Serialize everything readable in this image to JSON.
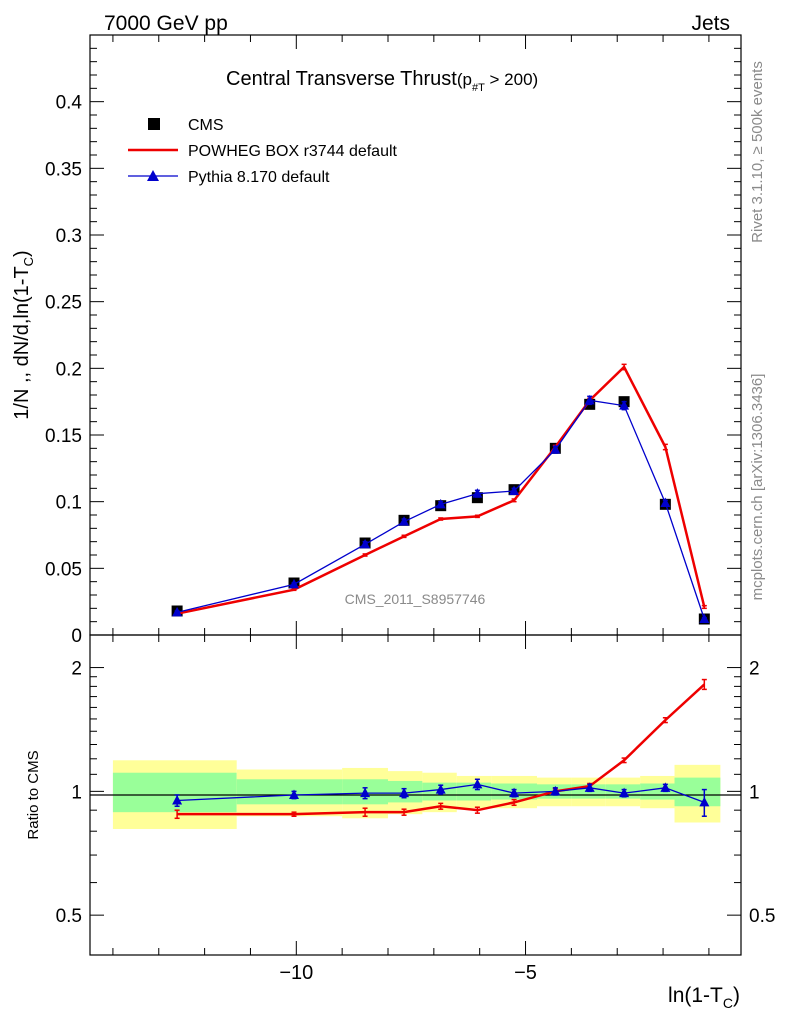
{
  "header": {
    "left": "7000 GeV pp",
    "right": "Jets"
  },
  "side_text": {
    "rivet": "Rivet 3.1.10, ≥ 500k events",
    "mcplots": "mcplots.cern.ch [arXiv:1306.3436]"
  },
  "chart_data": {
    "type": "line",
    "title": "Central Transverse Thrust",
    "title_suffix": "(p",
    "title_sub": "#T",
    "title_end": "  > 200)",
    "watermark": "CMS_2011_S8957746",
    "xlabel": "ln(1-T",
    "xlabel_sub": "C",
    "xlabel_end": ")",
    "ylabel": "1/N ,, dN/d,ln(1-T",
    "ylabel_sub": "C",
    "ylabel_end": ")",
    "ratio_ylabel": "Ratio to CMS",
    "xlim": [
      -14.5,
      -0.3
    ],
    "ylim": [
      0,
      0.45
    ],
    "ratio_ylim": [
      0.4,
      2.4
    ],
    "ratio_log": true,
    "x_ticks": [
      -10,
      -5
    ],
    "x_tick_labels": [
      "−10",
      "−5"
    ],
    "y_ticks": [
      0,
      0.05,
      0.1,
      0.15,
      0.2,
      0.25,
      0.3,
      0.35,
      0.4
    ],
    "y_tick_labels": [
      "0",
      "0.05",
      "0.1",
      "0.15",
      "0.2",
      "0.25",
      "0.3",
      "0.35",
      "0.4"
    ],
    "ratio_ticks": [
      0.5,
      1,
      2
    ],
    "ratio_tick_labels": [
      "0.5",
      "1",
      "2"
    ],
    "legend_position": "top-left",
    "bins": [
      [
        -14.0,
        -11.3
      ],
      [
        -11.3,
        -9.0
      ],
      [
        -9.0,
        -8.0
      ],
      [
        -8.0,
        -7.25
      ],
      [
        -7.25,
        -6.5
      ],
      [
        -6.5,
        -5.75
      ],
      [
        -5.75,
        -4.75
      ],
      [
        -4.75,
        -4.0
      ],
      [
        -4.0,
        -3.25
      ],
      [
        -3.25,
        -2.5
      ],
      [
        -2.5,
        -1.75
      ],
      [
        -1.75,
        -0.75
      ]
    ],
    "x": [
      -12.6,
      -10.05,
      -8.5,
      -7.65,
      -6.85,
      -6.05,
      -5.25,
      -4.35,
      -3.6,
      -2.85,
      -1.95,
      -1.1
    ],
    "band_inner": [
      0.11,
      0.07,
      0.07,
      0.06,
      0.05,
      0.05,
      0.045,
      0.04,
      0.04,
      0.04,
      0.045,
      0.08
    ],
    "band_outer": [
      0.19,
      0.13,
      0.14,
      0.12,
      0.11,
      0.09,
      0.09,
      0.08,
      0.08,
      0.08,
      0.09,
      0.16
    ],
    "series": [
      {
        "name": "CMS",
        "color": "#000000",
        "marker": "square",
        "values": [
          0.018,
          0.039,
          0.069,
          0.086,
          0.097,
          0.103,
          0.109,
          0.14,
          0.173,
          0.175,
          0.098,
          0.012
        ],
        "ratio": [
          1,
          1,
          1,
          1,
          1,
          1,
          1,
          1,
          1,
          1,
          1,
          1
        ]
      },
      {
        "name": "POWHEG BOX r3744 default",
        "color": "#ee0000",
        "marker": "none",
        "values": [
          0.016,
          0.034,
          0.06,
          0.074,
          0.087,
          0.089,
          0.101,
          0.141,
          0.176,
          0.201,
          0.141,
          0.021
        ],
        "errors": [
          0.0005,
          0.0005,
          0.0008,
          0.0008,
          0.0008,
          0.0008,
          0.001,
          0.0012,
          0.0015,
          0.002,
          0.002,
          0.001
        ],
        "ratio": [
          0.88,
          0.88,
          0.89,
          0.89,
          0.92,
          0.9,
          0.94,
          1.0,
          1.03,
          1.19,
          1.49,
          1.82
        ],
        "ratio_errors": [
          0.02,
          0.01,
          0.02,
          0.015,
          0.015,
          0.015,
          0.015,
          0.015,
          0.015,
          0.015,
          0.02,
          0.05
        ]
      },
      {
        "name": "Pythia 8.170 default",
        "color": "#0000cc",
        "marker": "triangle",
        "values": [
          0.017,
          0.038,
          0.068,
          0.085,
          0.098,
          0.106,
          0.108,
          0.139,
          0.176,
          0.172,
          0.099,
          0.012
        ],
        "errors": [
          0.001,
          0.001,
          0.002,
          0.002,
          0.002,
          0.0025,
          0.002,
          0.0025,
          0.003,
          0.003,
          0.002,
          0.001
        ],
        "ratio": [
          0.95,
          0.98,
          0.99,
          0.99,
          1.01,
          1.04,
          0.99,
          1.0,
          1.02,
          0.99,
          1.02,
          0.94
        ],
        "ratio_errors": [
          0.03,
          0.02,
          0.03,
          0.025,
          0.025,
          0.03,
          0.02,
          0.02,
          0.02,
          0.02,
          0.02,
          0.07
        ]
      }
    ]
  }
}
